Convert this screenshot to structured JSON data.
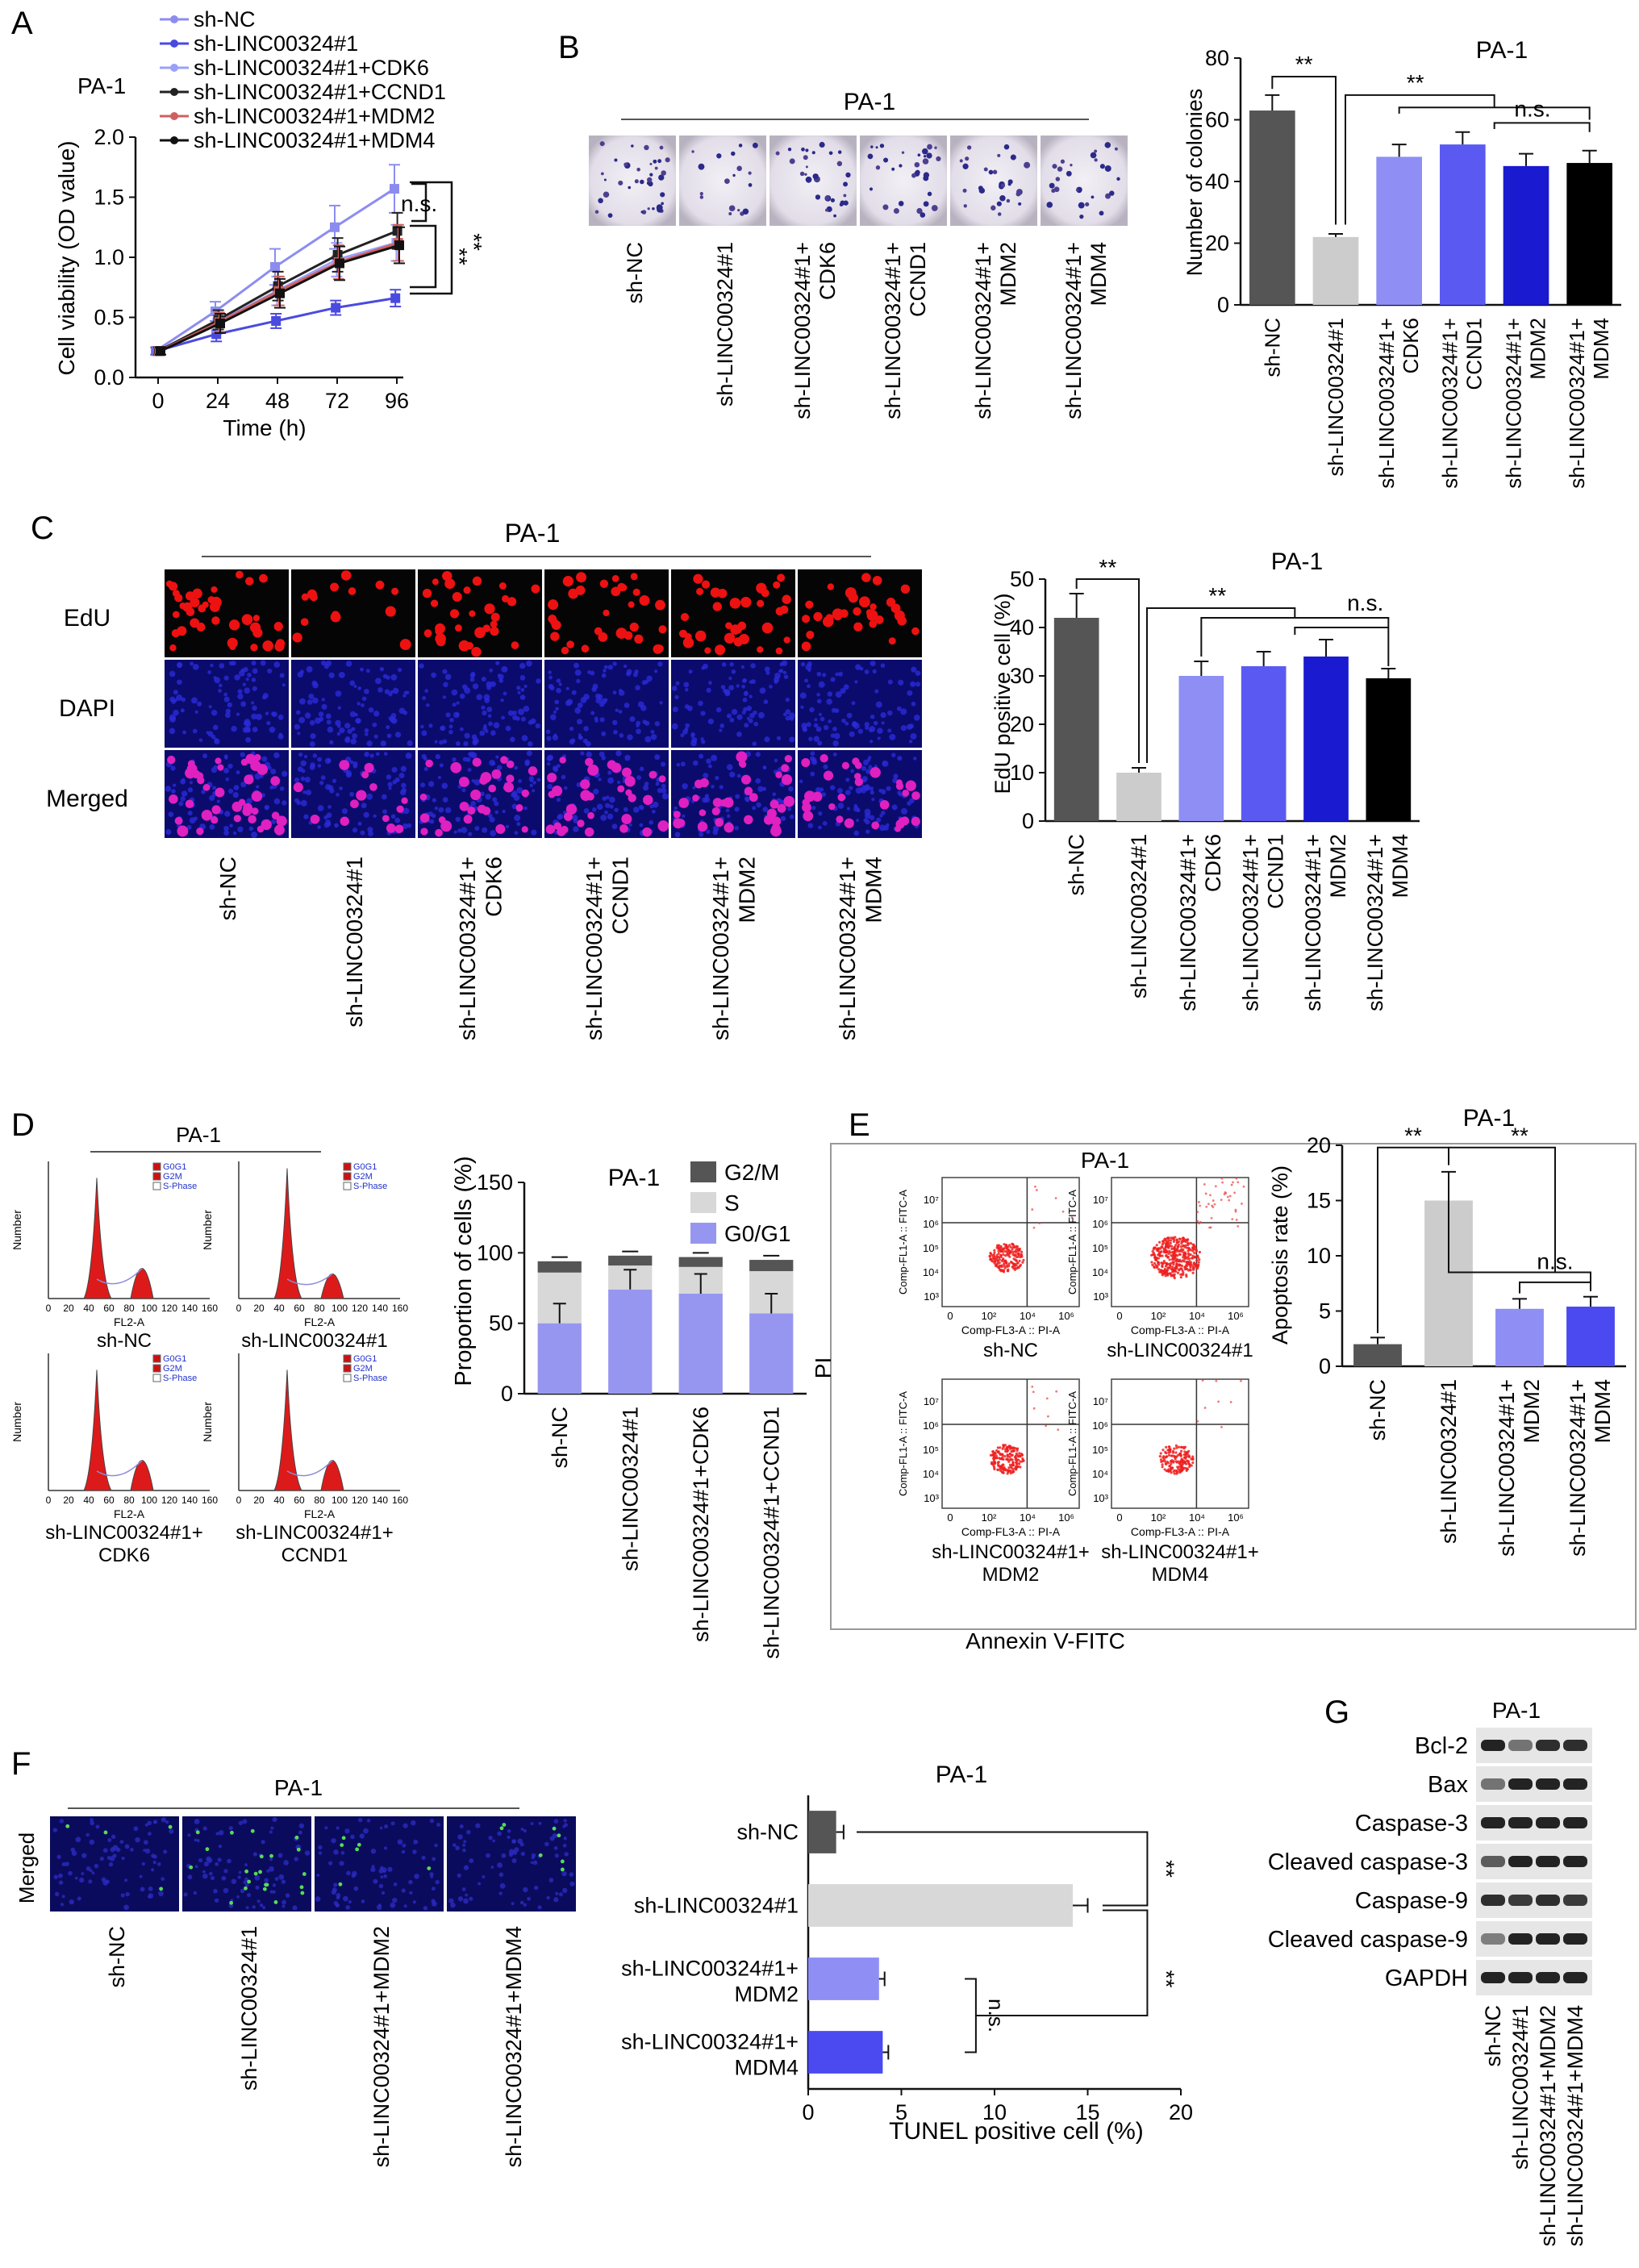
{
  "panel_letters": [
    "A",
    "B",
    "C",
    "D",
    "E",
    "F",
    "G"
  ],
  "chart_data": [
    {
      "panel": "A",
      "type": "line",
      "title": "PA-1",
      "xlabel": "Time (h)",
      "ylabel": "Cell viability (OD value)",
      "x": [
        0,
        24,
        48,
        72,
        96
      ],
      "ylim": [
        0,
        2.0
      ],
      "yticks": [
        "0.0",
        "0.5",
        "1.0",
        "1.5",
        "2.0"
      ],
      "series": [
        {
          "name": "sh-NC",
          "values": [
            0.22,
            0.55,
            0.92,
            1.25,
            1.57
          ],
          "err": [
            0.03,
            0.08,
            0.15,
            0.18,
            0.2
          ]
        },
        {
          "name": "sh-LINC00324#1",
          "values": [
            0.22,
            0.36,
            0.47,
            0.58,
            0.66
          ],
          "err": [
            0.03,
            0.06,
            0.06,
            0.06,
            0.07
          ]
        },
        {
          "name": "sh-LINC00324#1+CDK6",
          "values": [
            0.22,
            0.46,
            0.72,
            0.98,
            1.12
          ],
          "err": [
            0.03,
            0.08,
            0.12,
            0.14,
            0.15
          ]
        },
        {
          "name": "sh-LINC00324#1+CCND1",
          "values": [
            0.22,
            0.48,
            0.76,
            1.02,
            1.22
          ],
          "err": [
            0.03,
            0.08,
            0.12,
            0.14,
            0.15
          ]
        },
        {
          "name": "sh-LINC00324#1+MDM2",
          "values": [
            0.22,
            0.46,
            0.72,
            0.96,
            1.12
          ],
          "err": [
            0.03,
            0.08,
            0.12,
            0.14,
            0.15
          ]
        },
        {
          "name": "sh-LINC00324#1+MDM4",
          "values": [
            0.22,
            0.45,
            0.7,
            0.95,
            1.1
          ],
          "err": [
            0.03,
            0.08,
            0.12,
            0.14,
            0.15
          ]
        }
      ],
      "colors": [
        "#8c8cf0",
        "#4a4ae0",
        "#9aa0f8",
        "#222222",
        "#d06060",
        "#111111"
      ],
      "annotations": [
        "n.s.",
        "**",
        "**"
      ]
    },
    {
      "panel": "B",
      "type": "bar",
      "title": "PA-1",
      "ylabel": "Number of colonies",
      "categories": [
        "sh-NC",
        "sh-LINC00324#1",
        "sh-LINC00324#1+ CDK6",
        "sh-LINC00324#1+ CCND1",
        "sh-LINC00324#1+ MDM2",
        "sh-LINC00324#1+ MDM4"
      ],
      "values": [
        63,
        22,
        48,
        52,
        45,
        46
      ],
      "err": [
        5,
        1,
        4,
        4,
        4,
        4
      ],
      "ylim": [
        0,
        80
      ],
      "yticks": [
        "0",
        "20",
        "40",
        "60",
        "80"
      ],
      "colors": [
        "#555555",
        "#cccccc",
        "#8e8ef5",
        "#5a5af2",
        "#1a1ad0",
        "#000000"
      ],
      "annotations": [
        "**",
        "**",
        "n.s."
      ]
    },
    {
      "panel": "C",
      "type": "bar",
      "title": "PA-1",
      "ylabel": "EdU positive cell (%)",
      "categories": [
        "sh-NC",
        "sh-LINC00324#1",
        "sh-LINC00324#1+ CDK6",
        "sh-LINC00324#1+ CCND1",
        "sh-LINC00324#1+ MDM2",
        "sh-LINC00324#1+ MDM4"
      ],
      "values": [
        42,
        10,
        30,
        32,
        34,
        29.5
      ],
      "err": [
        5,
        1,
        3,
        3,
        3.5,
        2
      ],
      "ylim": [
        0,
        50
      ],
      "yticks": [
        "0",
        "10",
        "20",
        "30",
        "40",
        "50"
      ],
      "colors": [
        "#555555",
        "#cccccc",
        "#8e8ef5",
        "#5a5af2",
        "#1a1ad0",
        "#000000"
      ],
      "annotations": [
        "**",
        "**",
        "n.s."
      ]
    },
    {
      "panel": "D",
      "type": "bar",
      "title": "PA-1",
      "ylabel": "Proportion of cells (%)",
      "categories": [
        "sh-NC",
        "sh-LINC00324#1",
        "sh-LINC00324#1+CDK6",
        "sh-LINC00324#1+CCND1"
      ],
      "series": [
        {
          "name": "G0/G1",
          "values": [
            50,
            74,
            71,
            57
          ]
        },
        {
          "name": "S",
          "values": [
            36,
            17,
            19,
            30
          ]
        },
        {
          "name": "G2/M",
          "values": [
            8,
            7,
            7,
            8
          ]
        }
      ],
      "ylim": [
        0,
        150
      ],
      "yticks": [
        "0",
        "50",
        "100",
        "150"
      ],
      "colors": [
        "#9696f0",
        "#d8d8d8",
        "#555555"
      ]
    },
    {
      "panel": "E",
      "type": "bar",
      "title": "PA-1",
      "ylabel": "Apoptosis rate (%)",
      "categories": [
        "sh-NC",
        "sh-LINC00324#1",
        "sh-LINC00324#1+ MDM2",
        "sh-LINC00324#1+ MDM4"
      ],
      "values": [
        2.0,
        15.0,
        5.2,
        5.4
      ],
      "err": [
        0.6,
        2.6,
        0.9,
        0.9
      ],
      "ylim": [
        0,
        20
      ],
      "yticks": [
        "0",
        "5",
        "10",
        "15",
        "20"
      ],
      "colors": [
        "#555555",
        "#cccccc",
        "#8e8ef5",
        "#4a4af0"
      ],
      "annotations": [
        "**",
        "**",
        "n.s."
      ]
    },
    {
      "panel": "F",
      "type": "bar",
      "title": "PA-1",
      "xlabel": "TUNEL positive cell (%)",
      "categories": [
        "sh-NC",
        "sh-LINC00324#1",
        "sh-LINC00324#1+ MDM2",
        "sh-LINC00324#1+ MDM4"
      ],
      "values": [
        1.5,
        14.2,
        3.8,
        4.0
      ],
      "err": [
        0.4,
        0.8,
        0.3,
        0.3
      ],
      "xlim": [
        0,
        20
      ],
      "xticks": [
        "0",
        "5",
        "10",
        "15",
        "20"
      ],
      "colors": [
        "#555555",
        "#d8d8d8",
        "#8e8ef5",
        "#4a4af0"
      ],
      "annotations": [
        "**",
        "**",
        "n.s."
      ]
    }
  ],
  "images": {
    "b_header": "PA-1",
    "c_header": "PA-1",
    "c_rows": [
      "EdU",
      "DAPI",
      "Merged"
    ],
    "d_header": "PA-1",
    "e_header": "PA-1",
    "e_ylabel": "PI",
    "e_xlabel": "Annexin V-FITC",
    "f_header": "PA-1",
    "f_row": "Merged",
    "f_groups": [
      "sh-NC",
      "sh-LINC00324#1",
      "sh-LINC00324#1+MDM2",
      "sh-LINC00324#1+MDM4"
    ],
    "d_hist_labels": [
      "sh-NC",
      "sh-LINC00324#1",
      "sh-LINC00324#1+ CDK6",
      "sh-LINC00324#1+ CCND1"
    ],
    "d_hist_axis": {
      "y": "Number",
      "x": "FL2-A",
      "ticks": [
        "0",
        "20",
        "40",
        "60",
        "80",
        "100",
        "120",
        "140",
        "160"
      ],
      "legend": [
        "G0G1",
        "G2M",
        "S-Phase"
      ]
    },
    "e_flow_labels": [
      "sh-NC",
      "sh-LINC00324#1",
      "sh-LINC00324#1+ MDM2",
      "sh-LINC00324#1+ MDM4"
    ],
    "e_flow_axis": {
      "y": "Comp-FL1-A :: FITC-A",
      "x": "Comp-FL3-A :: PI-A",
      "xticks": [
        "0",
        "10²",
        "10⁴",
        "10⁶"
      ],
      "yticks": [
        "10³",
        "10⁴",
        "10⁵",
        "10⁶",
        "10⁷"
      ]
    },
    "g_header": "PA-1",
    "g_rows": [
      "Bcl-2",
      "Bax",
      "Caspase-3",
      "Cleaved caspase-3",
      "Caspase-9",
      "Cleaved caspase-9",
      "GAPDH"
    ],
    "g_lanes": [
      "sh-NC",
      "sh-LINC00324#1",
      "sh-LINC00324#1+MDM2",
      "sh-LINC00324#1+MDM4"
    ],
    "g_band_intensity": [
      [
        0.85,
        0.5,
        0.8,
        0.8
      ],
      [
        0.5,
        0.85,
        0.85,
        0.85
      ],
      [
        0.85,
        0.85,
        0.85,
        0.85
      ],
      [
        0.6,
        0.85,
        0.85,
        0.85
      ],
      [
        0.8,
        0.75,
        0.8,
        0.75
      ],
      [
        0.45,
        0.85,
        0.85,
        0.85
      ],
      [
        0.85,
        0.85,
        0.85,
        0.85
      ]
    ]
  }
}
